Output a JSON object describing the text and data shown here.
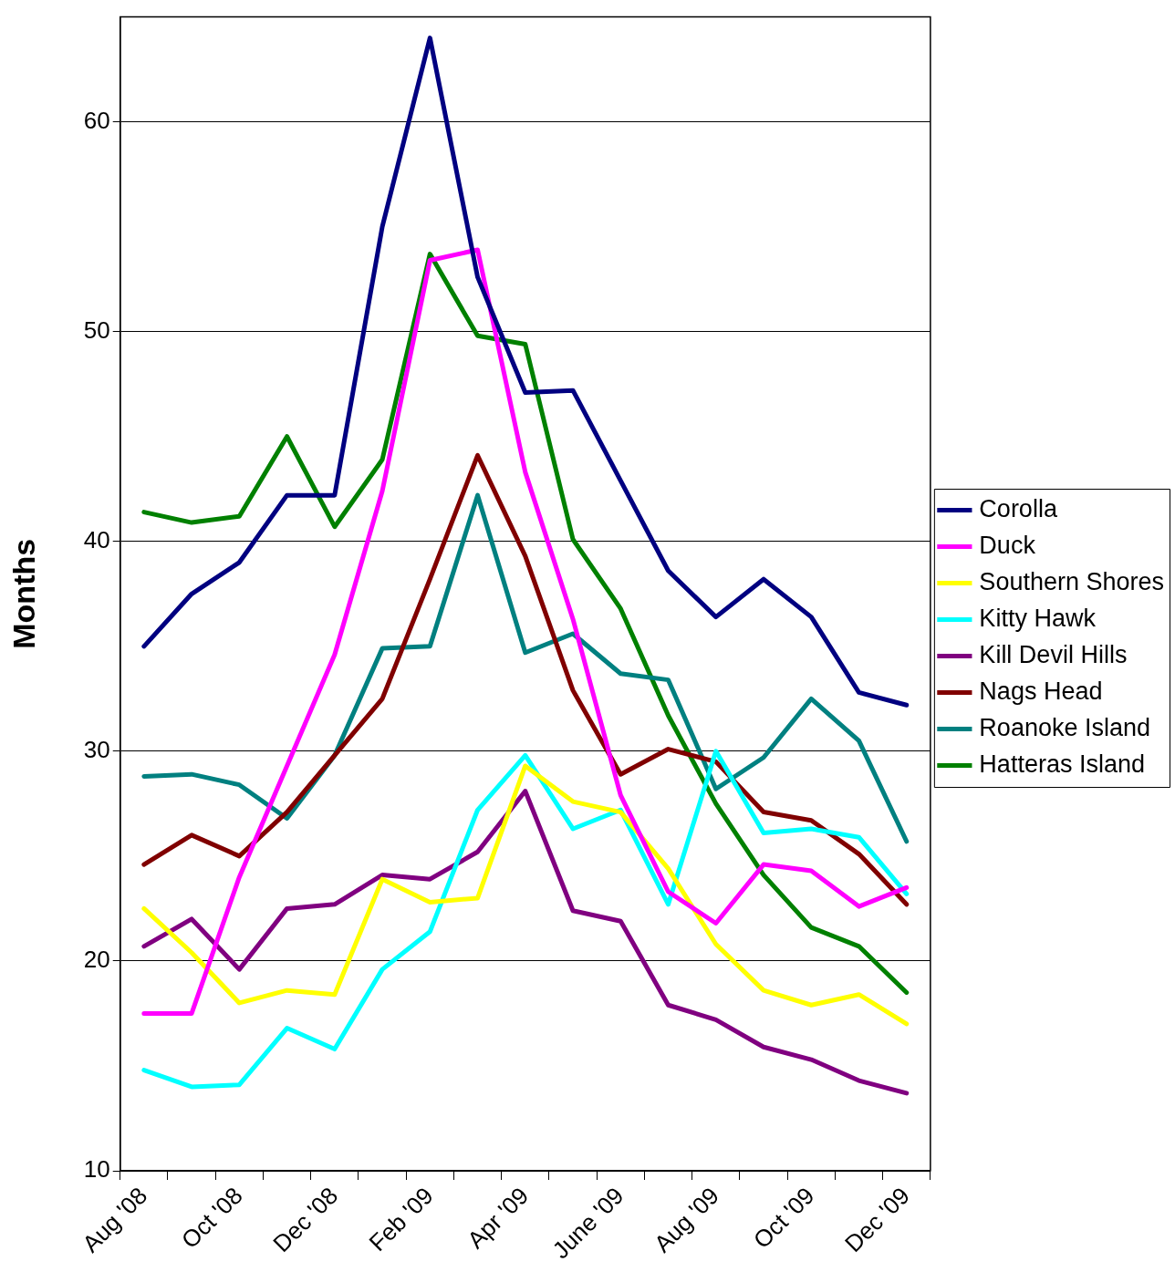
{
  "chart_data": {
    "type": "line",
    "ylabel": "Months",
    "categories": [
      "Aug '08",
      null,
      "Oct '08",
      null,
      "Dec '08",
      null,
      "Feb '09",
      null,
      "Apr '09",
      null,
      "June '09",
      null,
      "Aug '09",
      null,
      "Oct '09",
      null,
      "Dec '09"
    ],
    "ylim": [
      10,
      65
    ],
    "yticks": [
      10,
      20,
      30,
      40,
      50,
      60
    ],
    "grid": "y",
    "legend": "right",
    "series": [
      {
        "name": "Corolla",
        "color": "#000080",
        "values": [
          35.0,
          37.5,
          39.0,
          42.2,
          42.2,
          55.0,
          64.0,
          52.6,
          47.1,
          47.2,
          42.9,
          38.6,
          36.4,
          38.2,
          36.4,
          32.8,
          32.2
        ]
      },
      {
        "name": "Duck",
        "color": "#ff00ff",
        "values": [
          17.5,
          17.5,
          24.0,
          29.3,
          34.6,
          42.4,
          53.4,
          53.9,
          43.3,
          36.3,
          27.9,
          23.3,
          21.8,
          24.6,
          24.3,
          22.6,
          23.5
        ]
      },
      {
        "name": "Southern Shores",
        "color": "#ffff00",
        "values": [
          22.5,
          20.4,
          18.0,
          18.6,
          18.4,
          23.9,
          22.8,
          23.0,
          29.3,
          27.6,
          27.1,
          24.4,
          20.8,
          18.6,
          17.9,
          18.4,
          17.0
        ]
      },
      {
        "name": "Kitty Hawk",
        "color": "#00ffff",
        "values": [
          14.8,
          14.0,
          14.1,
          16.8,
          15.8,
          19.6,
          21.4,
          27.2,
          29.8,
          26.3,
          27.2,
          22.7,
          30.0,
          26.1,
          26.3,
          25.9,
          23.2
        ]
      },
      {
        "name": "Kill Devil Hills",
        "color": "#800080",
        "values": [
          20.7,
          22.0,
          19.6,
          22.5,
          22.7,
          24.1,
          23.9,
          25.2,
          28.1,
          22.4,
          21.9,
          17.9,
          17.2,
          15.9,
          15.3,
          14.3,
          13.7
        ]
      },
      {
        "name": "Nags Head",
        "color": "#800000",
        "values": [
          24.6,
          26.0,
          25.0,
          27.1,
          29.8,
          32.5,
          38.2,
          44.1,
          39.3,
          32.9,
          28.9,
          30.1,
          29.5,
          27.1,
          26.7,
          25.1,
          22.7
        ]
      },
      {
        "name": "Roanoke Island",
        "color": "#008080",
        "values": [
          28.8,
          28.9,
          28.4,
          26.8,
          29.8,
          34.9,
          35.0,
          42.2,
          34.7,
          35.6,
          33.7,
          33.4,
          28.2,
          29.7,
          32.5,
          30.5,
          25.7
        ]
      },
      {
        "name": "Hatteras Island",
        "color": "#008000",
        "values": [
          41.4,
          40.9,
          41.2,
          45.0,
          40.7,
          43.9,
          53.7,
          49.8,
          49.4,
          40.1,
          36.8,
          31.7,
          27.5,
          24.1,
          21.6,
          20.7,
          18.5
        ]
      }
    ]
  }
}
